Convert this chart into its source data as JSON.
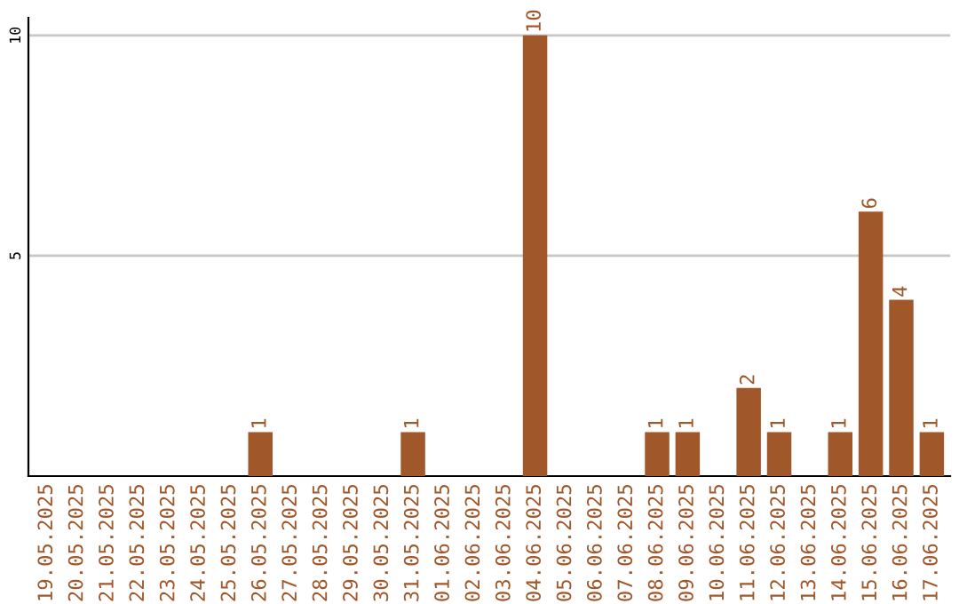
{
  "chart_data": {
    "type": "bar",
    "categories": [
      "19.05.2025",
      "20.05.2025",
      "21.05.2025",
      "22.05.2025",
      "23.05.2025",
      "24.05.2025",
      "25.05.2025",
      "26.05.2025",
      "27.05.2025",
      "28.05.2025",
      "29.05.2025",
      "30.05.2025",
      "31.05.2025",
      "01.06.2025",
      "02.06.2025",
      "03.06.2025",
      "04.06.2025",
      "05.06.2025",
      "06.06.2025",
      "07.06.2025",
      "08.06.2025",
      "09.06.2025",
      "10.06.2025",
      "11.06.2025",
      "12.06.2025",
      "13.06.2025",
      "14.06.2025",
      "15.06.2025",
      "16.06.2025",
      "17.06.2025"
    ],
    "values": [
      0,
      0,
      0,
      0,
      0,
      0,
      0,
      1,
      0,
      0,
      0,
      0,
      1,
      0,
      0,
      0,
      10,
      0,
      0,
      0,
      1,
      1,
      0,
      2,
      1,
      0,
      1,
      6,
      4,
      1
    ],
    "value_labels": [
      null,
      null,
      null,
      null,
      null,
      null,
      null,
      "1",
      null,
      null,
      null,
      null,
      "1",
      null,
      null,
      null,
      "10",
      null,
      null,
      null,
      "1",
      "1",
      null,
      "2",
      "1",
      null,
      "1",
      "6",
      "4",
      "1"
    ],
    "color": "#a0572a",
    "ylim": [
      0,
      10.4
    ],
    "yticks": [
      5,
      10
    ],
    "grid": "y"
  }
}
